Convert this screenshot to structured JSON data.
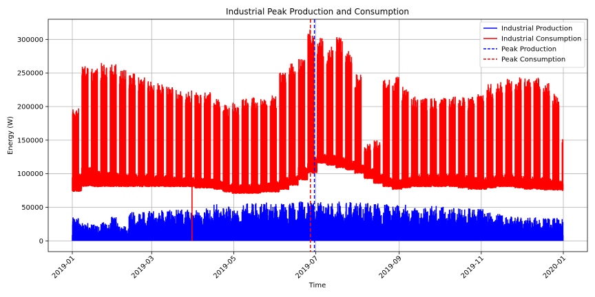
{
  "chart_data": {
    "type": "line",
    "title": "Industrial Peak Production and Consumption",
    "xlabel": "Time",
    "ylabel": "Energy (W)",
    "x_range": [
      "2019-01-01",
      "2020-01-01"
    ],
    "ylim": [
      -16000,
      330000
    ],
    "x_ticks": [
      {
        "date": "2019-01-01",
        "label": "2019-01"
      },
      {
        "date": "2019-03-01",
        "label": "2019-03"
      },
      {
        "date": "2019-05-01",
        "label": "2019-05"
      },
      {
        "date": "2019-07-01",
        "label": "2019-07"
      },
      {
        "date": "2019-09-01",
        "label": "2019-09"
      },
      {
        "date": "2019-11-01",
        "label": "2019-11"
      },
      {
        "date": "2020-01-01",
        "label": "2020-01"
      }
    ],
    "y_ticks": [
      {
        "value": 0,
        "label": "0"
      },
      {
        "value": 50000,
        "label": "50000"
      },
      {
        "value": 100000,
        "label": "100000"
      },
      {
        "value": 150000,
        "label": "150000"
      },
      {
        "value": 200000,
        "label": "200000"
      },
      {
        "value": 250000,
        "label": "250000"
      },
      {
        "value": 300000,
        "label": "300000"
      }
    ],
    "grid": true,
    "legend_position": "top-right",
    "series": [
      {
        "name": "Industrial Production",
        "color": "#0000ff",
        "style": "solid",
        "weekly_envelope": {
          "weeks_start": "2019-01-01",
          "peak_max": [
            35000,
            27000,
            26000,
            28000,
            36000,
            22000,
            43000,
            44000,
            45000,
            46000,
            46000,
            47000,
            48000,
            49000,
            52000,
            55000,
            54000,
            46000,
            57000,
            58000,
            58000,
            57000,
            56000,
            58000,
            59000,
            60000,
            59000,
            58000,
            59000,
            58000,
            58000,
            57000,
            56000,
            55000,
            55000,
            54000,
            53000,
            52000,
            52000,
            51000,
            50000,
            49000,
            49000,
            48000,
            42000,
            40000,
            38000,
            36000,
            36000,
            35000,
            34000,
            34000,
            34000
          ]
        }
      },
      {
        "name": "Industrial Consumption",
        "color": "#ff0000",
        "style": "solid",
        "weekly_envelope": {
          "weeks_start": "2019-01-01",
          "base_min": [
            73000,
            80000,
            80000,
            80000,
            80000,
            80000,
            80000,
            80000,
            80000,
            80000,
            80000,
            80000,
            80000,
            78000,
            78000,
            76000,
            72000,
            70000,
            70000,
            70000,
            72000,
            72000,
            76000,
            82000,
            90000,
            100000,
            115000,
            112000,
            108000,
            105000,
            100000,
            92000,
            85000,
            80000,
            76000,
            78000,
            80000,
            80000,
            80000,
            80000,
            80000,
            78000,
            76000,
            76000,
            78000,
            80000,
            80000,
            78000,
            76000,
            76000,
            75000,
            75000,
            74000
          ],
          "base_max": [
            100000,
            110000,
            105000,
            103000,
            102000,
            100000,
            100000,
            100000,
            98000,
            98000,
            96000,
            95000,
            95000,
            95000,
            93000,
            90000,
            86000,
            85000,
            85000,
            86000,
            87000,
            90000,
            95000,
            100000,
            110000,
            125000,
            130000,
            128000,
            125000,
            120000,
            115000,
            108000,
            100000,
            95000,
            92000,
            96000,
            100000,
            100000,
            100000,
            100000,
            100000,
            98000,
            96000,
            95000,
            98000,
            100000,
            100000,
            98000,
            96000,
            95000,
            93000,
            90000,
            90000
          ],
          "peak_max": [
            200000,
            263000,
            258000,
            265000,
            264000,
            256000,
            250000,
            244000,
            238000,
            236000,
            230000,
            226000,
            224000,
            222000,
            222000,
            218000,
            204000,
            206000,
            214000,
            214000,
            212000,
            218000,
            252000,
            265000,
            272000,
            316000,
            302000,
            290000,
            305000,
            285000,
            248000,
            145000,
            150000,
            240000,
            245000,
            230000,
            215000,
            213000,
            213000,
            213000,
            215000,
            215000,
            215000,
            222000,
            235000,
            240000,
            242000,
            244000,
            245000,
            244000,
            235000,
            220000,
            160000
          ]
        }
      },
      {
        "name": "Peak Production",
        "color": "#0000ff",
        "style": "dashed",
        "vline_date": "2019-06-30"
      },
      {
        "name": "Peak Consumption",
        "color": "#ff0000",
        "style": "dashed",
        "vline_date": "2019-06-27"
      }
    ],
    "annotations": [
      {
        "type": "vertical-spike",
        "series": "Industrial Consumption",
        "date": "2019-03-31",
        "y_from": 0,
        "y_to": 85000
      }
    ]
  }
}
